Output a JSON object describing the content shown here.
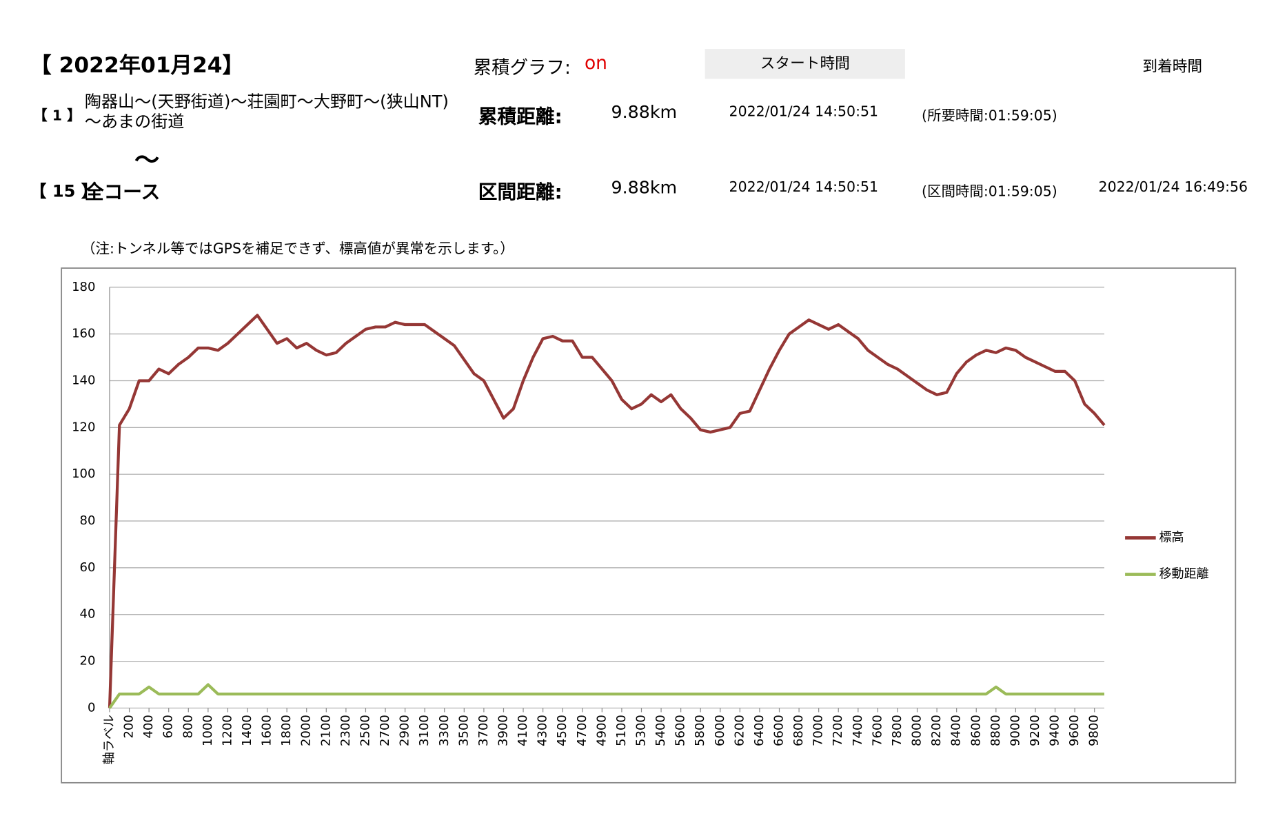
{
  "header": {
    "date": "【 2022年01月24】",
    "graph_label": "累積グラフ:",
    "graph_state": "on",
    "start_label": "スタート時間",
    "end_label": "到着時間",
    "from_no": "【 1 】",
    "from_course": "陶器山～(天野街道)～荘園町～大野町～(狭山NT)～あまの街道",
    "tilde": "～",
    "to_no": "【 15 】",
    "to_course": "全コース",
    "total_label": "累積距離:",
    "total_distance": "9.88km",
    "total_start": "2022/01/24 14:50:51",
    "total_time": "(所要時間:01:59:05)",
    "section_label": "区間距離:",
    "section_distance": "9.88km",
    "section_start": "2022/01/24 14:50:51",
    "section_time": "(区間時間:01:59:05)",
    "section_end": "2022/01/24 16:49:56",
    "note": "（注:トンネル等ではGPSを補足できず、標高値が異常を示します。）"
  },
  "chart_data": {
    "type": "line",
    "categories": [
      "軸ラベル",
      null,
      "200",
      null,
      "400",
      null,
      "600",
      null,
      "800",
      null,
      "1000",
      null,
      "1200",
      null,
      "1400",
      null,
      "1600",
      null,
      "1800",
      null,
      "2000",
      null,
      "2100",
      null,
      "2300",
      null,
      "2500",
      null,
      "2700",
      null,
      "2900",
      null,
      "3100",
      null,
      "3300",
      null,
      "3500",
      null,
      "3700",
      null,
      "3900",
      null,
      "4100",
      null,
      "4300",
      null,
      "4500",
      null,
      "4700",
      null,
      "4900",
      null,
      "5100",
      null,
      "5300",
      null,
      "5400",
      null,
      "5600",
      null,
      "5800",
      null,
      "6000",
      null,
      "6200",
      null,
      "6400",
      null,
      "6600",
      null,
      "6800",
      null,
      "7000",
      null,
      "7200",
      null,
      "7400",
      null,
      "7600",
      null,
      "7800",
      null,
      "8000",
      null,
      "8200",
      null,
      "8400",
      null,
      "8600",
      null,
      "8800",
      null,
      "9000",
      null,
      "9200",
      null,
      "9400",
      null,
      "9600",
      null,
      "9800",
      null
    ],
    "series": [
      {
        "name": "標高",
        "color": "#953735",
        "values": [
          0,
          121,
          128,
          140,
          140,
          145,
          143,
          147,
          150,
          154,
          154,
          153,
          156,
          160,
          164,
          168,
          162,
          156,
          158,
          154,
          156,
          153,
          151,
          152,
          156,
          159,
          162,
          163,
          163,
          165,
          164,
          164,
          164,
          161,
          158,
          155,
          149,
          143,
          140,
          132,
          124,
          128,
          140,
          150,
          158,
          159,
          157,
          157,
          150,
          150,
          145,
          140,
          132,
          128,
          130,
          134,
          131,
          134,
          128,
          124,
          119,
          118,
          119,
          120,
          126,
          127,
          136,
          145,
          153,
          160,
          163,
          166,
          164,
          162,
          164,
          161,
          158,
          153,
          150,
          147,
          145,
          142,
          139,
          136,
          134,
          135,
          143,
          148,
          151,
          153,
          152,
          154,
          153,
          150,
          148,
          146,
          144,
          144,
          140,
          130,
          126,
          121
        ]
      },
      {
        "name": "移動距離",
        "color": "#9bbb59",
        "values": [
          0,
          6,
          6,
          6,
          9,
          6,
          6,
          6,
          6,
          6,
          10,
          6,
          6,
          6,
          6,
          6,
          6,
          6,
          6,
          6,
          6,
          6,
          6,
          6,
          6,
          6,
          6,
          6,
          6,
          6,
          6,
          6,
          6,
          6,
          6,
          6,
          6,
          6,
          6,
          6,
          6,
          6,
          6,
          6,
          6,
          6,
          6,
          6,
          6,
          6,
          6,
          6,
          6,
          6,
          6,
          6,
          6,
          6,
          6,
          6,
          6,
          6,
          6,
          6,
          6,
          6,
          6,
          6,
          6,
          6,
          6,
          6,
          6,
          6,
          6,
          6,
          6,
          6,
          6,
          6,
          6,
          6,
          6,
          6,
          6,
          6,
          6,
          6,
          6,
          6,
          9,
          6,
          6,
          6,
          6,
          6,
          6,
          6,
          6,
          6,
          6,
          6
        ]
      }
    ],
    "ylim": [
      0,
      180
    ],
    "yticks": [
      0,
      20,
      40,
      60,
      80,
      100,
      120,
      140,
      160,
      180
    ],
    "grid": true,
    "legend": "right"
  }
}
